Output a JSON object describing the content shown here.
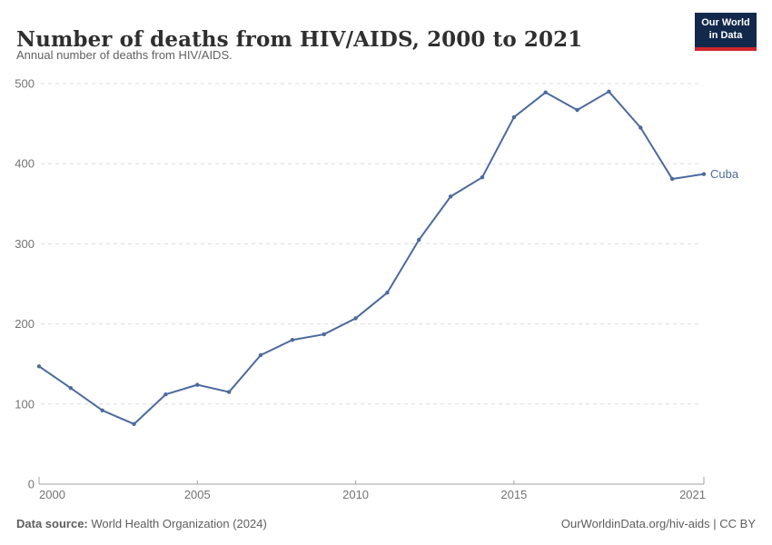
{
  "header": {
    "title": "Number of deaths from HIV/AIDS, 2000 to 2021",
    "subtitle": "Annual number of deaths from HIV/AIDS.",
    "logo": {
      "line1": "Our World",
      "line2": "in Data"
    }
  },
  "chart_data": {
    "type": "line",
    "title": "Number of deaths from HIV/AIDS, 2000 to 2021",
    "xlabel": "",
    "ylabel": "",
    "xlim": [
      2000,
      2021
    ],
    "ylim": [
      0,
      500
    ],
    "xticks": [
      2000,
      2005,
      2010,
      2015,
      2021
    ],
    "yticks": [
      0,
      100,
      200,
      300,
      400,
      500
    ],
    "grid": "horizontal-dashed",
    "legend_position": "end-of-line-label",
    "series": [
      {
        "name": "Cuba",
        "color": "#4C6A9C",
        "x": [
          2000,
          2001,
          2002,
          2003,
          2004,
          2005,
          2006,
          2007,
          2008,
          2009,
          2010,
          2011,
          2012,
          2013,
          2014,
          2015,
          2016,
          2017,
          2018,
          2019,
          2020,
          2021
        ],
        "values": [
          147,
          120,
          92,
          75,
          112,
          124,
          115,
          161,
          180,
          187,
          207,
          239,
          305,
          359,
          383,
          458,
          489,
          467,
          490,
          445,
          381,
          387
        ]
      }
    ]
  },
  "footer": {
    "datasource_label": "Data source:",
    "datasource_text": " World Health Organization (2024)",
    "license_text": "OurWorldinData.org/hiv-aids | CC BY"
  },
  "colors": {
    "line": "#4C6A9C",
    "grid": "#dcdcdc",
    "axis": "#a1a1a1",
    "tick_text": "#737373",
    "logo_bg": "#12294b",
    "logo_red": "#d0262c"
  }
}
